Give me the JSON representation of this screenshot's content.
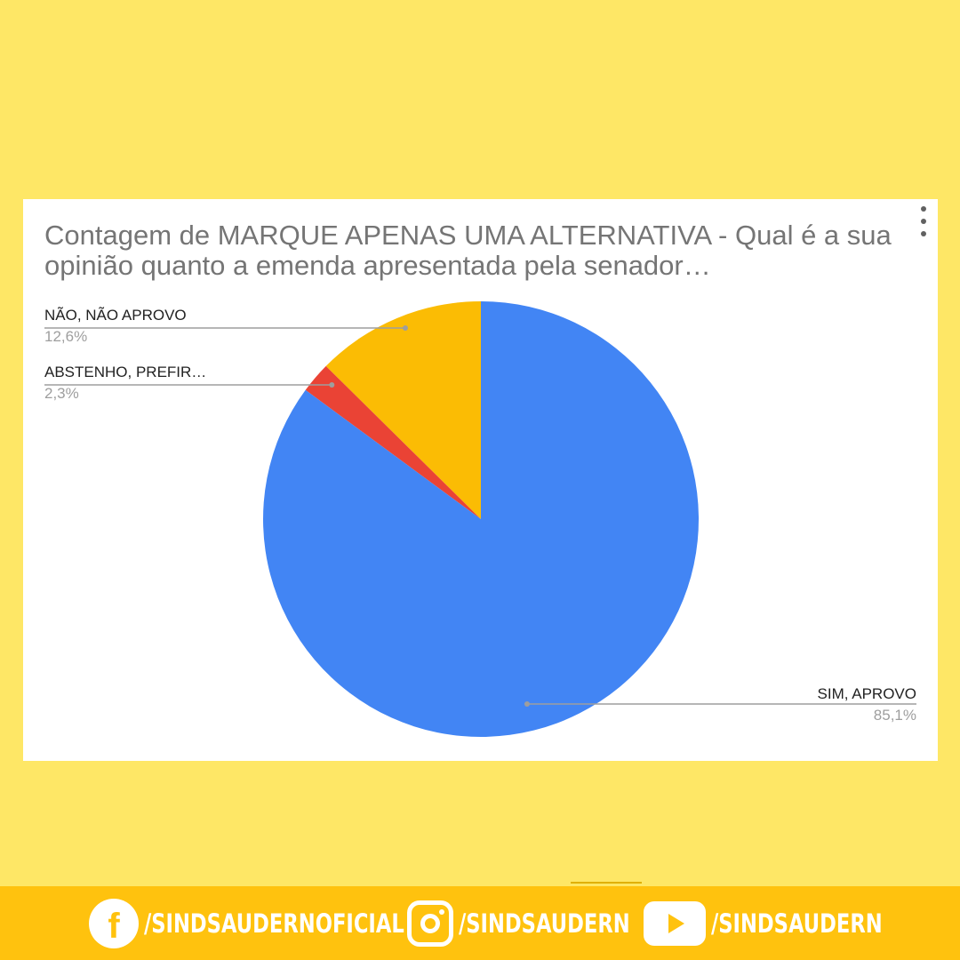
{
  "chart_data": {
    "type": "pie",
    "title": "Contagem de MARQUE APENAS UMA ALTERNATIVA - Qual é a sua opinião quanto a emenda apresentada pela senador…",
    "slices": [
      {
        "label": "NÃO, NÃO APROVO",
        "percent_text": "12,6%",
        "value": 12.6,
        "color": "#FBBC04"
      },
      {
        "label": "ABSTENHO, PREFIR…",
        "percent_text": "2,3%",
        "value": 2.3,
        "color": "#EA4335"
      },
      {
        "label": "SIM, APROVO",
        "percent_text": "85,1%",
        "value": 85.1,
        "color": "#4285F4"
      }
    ],
    "start_angle": "12 o'clock, counter-clockwise",
    "legend": "labeled slices with leader lines"
  },
  "colors": {
    "background": "#FEE766",
    "footer": "#FFC20E",
    "card": "#FFFFFF"
  },
  "footer": {
    "facebook": {
      "icon": "facebook-icon",
      "text": "/SINDSAUDERNOFICIAL"
    },
    "instagram": {
      "icon": "instagram-icon",
      "text": "/SINDSAUDERN"
    },
    "youtube": {
      "icon": "youtube-icon",
      "text": "/SINDSAUDERN"
    }
  },
  "menu": {
    "icon": "more-vert-icon"
  }
}
